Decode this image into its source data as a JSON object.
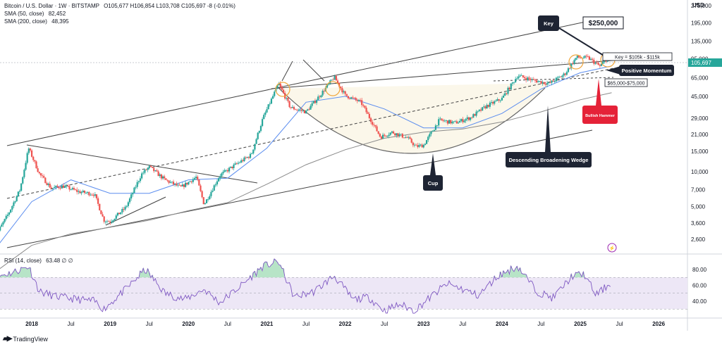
{
  "header": {
    "title": "Bitcoin / U.S. Dollar · 1W · BITSTAMP",
    "ohlc": "O105,677 H106,854 L103,708 C105,697 -8 (-0.01%)",
    "sma50_label": "SMA (50, close)",
    "sma50_value": "82,452",
    "sma200_label": "SMA (200, close)",
    "sma200_value": "48,395",
    "rsi_label": "RSI (14, close)",
    "rsi_values": "63.48 ∅ ∅"
  },
  "brand": {
    "logo": "TradingView"
  },
  "colors": {
    "up": "#26a69a",
    "down": "#ef5350",
    "sma50": "#5b8def",
    "sma200": "#8a8a8a",
    "rsi": "#7e57c2",
    "rsi_band": "#ede7f6",
    "dark_label": "#1e2433",
    "bullish": "#e52238",
    "price_label": "#26a69a",
    "cup_fill": "#fbf7ea",
    "highlight": "#f0a63c"
  },
  "chart_data": [
    {
      "type": "line",
      "title": "Bitcoin / U.S. Dollar · 1W · BITSTAMP",
      "currency": "USD",
      "scale": "log",
      "ylim": [
        1900,
        380000
      ],
      "x_tick_labels": [
        "2018",
        "Jul",
        "2019",
        "Jul",
        "2020",
        "Jul",
        "2021",
        "Jul",
        "2022",
        "Jul",
        "2023",
        "Jul",
        "2024",
        "Jul",
        "2025",
        "Jul",
        "2026"
      ],
      "y_tick_labels": [
        275000,
        195000,
        135000,
        95000,
        65000,
        45000,
        29000,
        21000,
        15000,
        10000,
        7000,
        5000,
        3600,
        2600
      ],
      "last_price": "105,697",
      "series": [
        {
          "name": "BTCUSD",
          "x": [
            2017.5,
            2017.7,
            2017.85,
            2017.96,
            2018.1,
            2018.25,
            2018.4,
            2018.6,
            2018.8,
            2018.92,
            2019.0,
            2019.2,
            2019.4,
            2019.5,
            2019.7,
            2019.9,
            2020.1,
            2020.2,
            2020.4,
            2020.6,
            2020.8,
            2020.95,
            2021.15,
            2021.3,
            2021.5,
            2021.7,
            2021.86,
            2022.0,
            2022.2,
            2022.45,
            2022.6,
            2022.8,
            2022.9,
            2023.0,
            2023.2,
            2023.4,
            2023.6,
            2023.8,
            2024.0,
            2024.2,
            2024.4,
            2024.6,
            2024.8,
            2024.95,
            2025.1,
            2025.25,
            2025.4
          ],
          "values": [
            2500,
            4300,
            7000,
            16000,
            9500,
            7200,
            7500,
            6700,
            6400,
            3800,
            3700,
            4900,
            9500,
            11000,
            8500,
            7300,
            9000,
            5200,
            9300,
            11500,
            14000,
            29000,
            58000,
            36000,
            33000,
            48000,
            66000,
            46000,
            40000,
            20000,
            22000,
            19500,
            16500,
            17000,
            28000,
            26500,
            29500,
            37000,
            43000,
            68000,
            62000,
            58000,
            70000,
            98000,
            97000,
            82000,
            105697
          ]
        },
        {
          "name": "SMA (50, close)",
          "x": [
            2017.5,
            2018.0,
            2018.5,
            2019.0,
            2019.5,
            2020.0,
            2020.5,
            2021.0,
            2021.5,
            2022.0,
            2022.5,
            2023.0,
            2023.5,
            2024.0,
            2024.5,
            2025.0,
            2025.4
          ],
          "values": [
            2000,
            5500,
            8500,
            6500,
            6500,
            8500,
            8800,
            16000,
            40000,
            45000,
            35000,
            24000,
            24000,
            32000,
            52000,
            72000,
            82452
          ]
        },
        {
          "name": "SMA (200, close)",
          "x": [
            2017.5,
            2018.0,
            2018.5,
            2019.0,
            2019.5,
            2020.0,
            2020.5,
            2021.0,
            2021.5,
            2022.0,
            2022.5,
            2023.0,
            2023.5,
            2024.0,
            2024.5,
            2025.0,
            2025.4
          ],
          "values": [
            1300,
            2300,
            2900,
            3300,
            3800,
            4600,
            5400,
            7800,
            11500,
            15500,
            19500,
            22000,
            23500,
            27000,
            33000,
            42000,
            48395
          ]
        }
      ],
      "annotations": {
        "key": "Key",
        "target": "$250,000",
        "key_range": "Key = $105k - $115k",
        "positive_momentum": "Positive Momentum",
        "support_range": "$65,000-$75,000",
        "bullish_hammer": "Bullish Hammer",
        "wedge": "Descending Broadening Wedge",
        "cup": "Cup"
      }
    },
    {
      "type": "line",
      "title": "RSI (14, close)",
      "ylim": [
        20,
        95
      ],
      "y_tick_labels": [
        80.0,
        60.0,
        40.0
      ],
      "band": [
        30,
        70
      ],
      "midline": 50,
      "last_value": 63.48,
      "series": [
        {
          "name": "RSI (14, close)",
          "x": [
            2017.5,
            2017.75,
            2017.96,
            2018.1,
            2018.3,
            2018.6,
            2018.8,
            2018.92,
            2019.2,
            2019.45,
            2019.7,
            2019.95,
            2020.2,
            2020.4,
            2020.7,
            2020.95,
            2021.15,
            2021.35,
            2021.6,
            2021.86,
            2022.1,
            2022.3,
            2022.5,
            2022.7,
            2022.88,
            2023.1,
            2023.3,
            2023.5,
            2023.7,
            2023.95,
            2024.2,
            2024.45,
            2024.65,
            2024.9,
            2025.05,
            2025.2,
            2025.4
          ],
          "values": [
            70,
            76,
            84,
            52,
            46,
            42,
            40,
            30,
            55,
            80,
            50,
            42,
            55,
            38,
            62,
            84,
            90,
            45,
            52,
            72,
            42,
            45,
            28,
            36,
            28,
            46,
            62,
            55,
            47,
            72,
            84,
            52,
            44,
            72,
            74,
            48,
            63.48
          ]
        }
      ]
    }
  ]
}
